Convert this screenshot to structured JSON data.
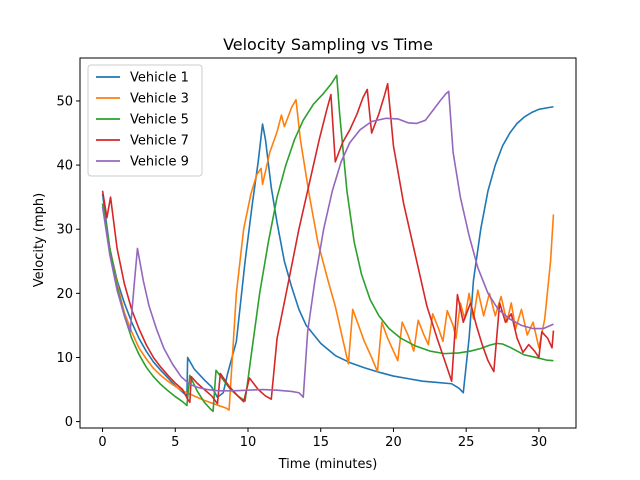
{
  "chart_data": {
    "type": "line",
    "title": "Velocity Sampling vs Time",
    "xlabel": "Time (minutes)",
    "ylabel": "Velocity (mph)",
    "xlim": [
      -1.55,
      32.55
    ],
    "ylim": [
      -1.0,
      56.7
    ],
    "xticks": [
      0,
      5,
      10,
      15,
      20,
      25,
      30
    ],
    "yticks": [
      0,
      10,
      20,
      30,
      40,
      50
    ],
    "grid": false,
    "legend": "top-left",
    "series": [
      {
        "name": "Vehicle 1",
        "color": "#1f77b4",
        "points": [
          [
            0,
            35.5
          ],
          [
            0.5,
            27
          ],
          [
            1,
            22
          ],
          [
            1.5,
            18.5
          ],
          [
            2,
            15.5
          ],
          [
            2.5,
            13
          ],
          [
            3,
            11
          ],
          [
            3.5,
            9.3
          ],
          [
            4,
            8
          ],
          [
            4.5,
            6.8
          ],
          [
            5,
            5.6
          ],
          [
            5.5,
            4.6
          ],
          [
            5.8,
            4.0
          ],
          [
            5.85,
            10.0
          ],
          [
            6.3,
            8.2
          ],
          [
            7,
            6.5
          ],
          [
            7.5,
            5.4
          ],
          [
            7.9,
            3.8
          ],
          [
            8.3,
            4.5
          ],
          [
            8.6,
            7.5
          ],
          [
            9.2,
            12.5
          ],
          [
            9.8,
            25
          ],
          [
            10.3,
            34
          ],
          [
            10.7,
            40.5
          ],
          [
            11.0,
            46.4
          ],
          [
            11.2,
            44
          ],
          [
            11.6,
            36.5
          ],
          [
            12,
            31
          ],
          [
            12.5,
            25
          ],
          [
            13,
            21
          ],
          [
            13.5,
            17.5
          ],
          [
            14,
            15
          ],
          [
            15,
            12.2
          ],
          [
            16,
            10.3
          ],
          [
            17,
            9.2
          ],
          [
            18,
            8.4
          ],
          [
            19,
            7.7
          ],
          [
            20,
            7.1
          ],
          [
            21,
            6.7
          ],
          [
            22,
            6.3
          ],
          [
            23,
            6.1
          ],
          [
            24,
            5.9
          ],
          [
            24.5,
            5.2
          ],
          [
            24.8,
            4.5
          ],
          [
            25.2,
            13
          ],
          [
            25.5,
            22
          ],
          [
            26,
            30
          ],
          [
            26.5,
            36
          ],
          [
            27,
            40
          ],
          [
            27.5,
            43
          ],
          [
            28,
            45
          ],
          [
            28.5,
            46.5
          ],
          [
            29,
            47.5
          ],
          [
            29.5,
            48.2
          ],
          [
            30,
            48.7
          ],
          [
            30.5,
            48.9
          ],
          [
            31,
            49.1
          ]
        ]
      },
      {
        "name": "Vehicle 3",
        "color": "#ff7f0e",
        "points": [
          [
            0,
            34
          ],
          [
            0.5,
            27
          ],
          [
            1,
            21.5
          ],
          [
            1.5,
            17
          ],
          [
            2,
            14
          ],
          [
            2.5,
            11.5
          ],
          [
            3,
            9.8
          ],
          [
            3.5,
            8.3
          ],
          [
            4,
            7.2
          ],
          [
            4.5,
            6.3
          ],
          [
            5,
            5.5
          ],
          [
            5.5,
            4.8
          ],
          [
            6,
            4.3
          ],
          [
            6.5,
            3.8
          ],
          [
            7,
            3.3
          ],
          [
            7.5,
            2.9
          ],
          [
            8,
            2.5
          ],
          [
            8.5,
            2.1
          ],
          [
            8.7,
            1.8
          ],
          [
            9.2,
            20
          ],
          [
            9.7,
            30
          ],
          [
            10.2,
            35.5
          ],
          [
            10.6,
            38.5
          ],
          [
            10.9,
            39.5
          ],
          [
            11.0,
            37
          ],
          [
            11.5,
            42
          ],
          [
            12,
            45.2
          ],
          [
            12.3,
            47.8
          ],
          [
            12.5,
            46
          ],
          [
            13,
            49
          ],
          [
            13.3,
            50.2
          ],
          [
            13.6,
            44
          ],
          [
            14.2,
            35.5
          ],
          [
            14.8,
            28
          ],
          [
            15.5,
            22
          ],
          [
            16,
            18
          ],
          [
            16.6,
            12
          ],
          [
            16.9,
            9
          ],
          [
            17.2,
            17.5
          ],
          [
            17.6,
            15
          ],
          [
            18,
            12.5
          ],
          [
            18.5,
            10
          ],
          [
            18.9,
            7.8
          ],
          [
            19.2,
            15.5
          ],
          [
            19.6,
            13
          ],
          [
            20,
            11
          ],
          [
            20.3,
            9.5
          ],
          [
            20.6,
            15.5
          ],
          [
            21,
            13.5
          ],
          [
            21.4,
            11
          ],
          [
            21.7,
            15.8
          ],
          [
            22.1,
            13.5
          ],
          [
            22.4,
            12
          ],
          [
            22.7,
            16.8
          ],
          [
            23.1,
            14.5
          ],
          [
            23.4,
            12.5
          ],
          [
            23.7,
            17.3
          ],
          [
            24.1,
            15
          ],
          [
            24.3,
            13
          ],
          [
            24.6,
            18.5
          ],
          [
            24.9,
            16
          ],
          [
            25.2,
            20
          ],
          [
            25.5,
            16
          ],
          [
            25.8,
            20.5
          ],
          [
            26.2,
            16.5
          ],
          [
            26.6,
            20
          ],
          [
            27,
            16.5
          ],
          [
            27.4,
            19.5
          ],
          [
            27.8,
            15.5
          ],
          [
            28.1,
            18.5
          ],
          [
            28.4,
            14.5
          ],
          [
            28.8,
            17.5
          ],
          [
            29.2,
            13.5
          ],
          [
            29.6,
            15.5
          ],
          [
            30.0,
            11.5
          ],
          [
            30.4,
            16
          ],
          [
            30.8,
            25
          ],
          [
            31,
            32.3
          ]
        ]
      },
      {
        "name": "Vehicle 5",
        "color": "#2ca02c",
        "points": [
          [
            0,
            34
          ],
          [
            0.5,
            27
          ],
          [
            1,
            21
          ],
          [
            1.5,
            16.5
          ],
          [
            2,
            13
          ],
          [
            2.5,
            10.5
          ],
          [
            3,
            8.5
          ],
          [
            3.5,
            7
          ],
          [
            4,
            5.8
          ],
          [
            4.5,
            4.8
          ],
          [
            5,
            3.9
          ],
          [
            5.5,
            3.1
          ],
          [
            5.8,
            2.5
          ],
          [
            6.0,
            7.2
          ],
          [
            6.5,
            4.8
          ],
          [
            7.0,
            3.0
          ],
          [
            7.4,
            2.0
          ],
          [
            7.6,
            1.6
          ],
          [
            7.8,
            8.0
          ],
          [
            8.3,
            6.5
          ],
          [
            8.8,
            5.0
          ],
          [
            9.3,
            4.0
          ],
          [
            9.8,
            3.2
          ],
          [
            10.2,
            10
          ],
          [
            10.8,
            20
          ],
          [
            11.4,
            28
          ],
          [
            12,
            35
          ],
          [
            12.6,
            40
          ],
          [
            13.2,
            44
          ],
          [
            13.8,
            47
          ],
          [
            14.5,
            49.5
          ],
          [
            15.2,
            51.2
          ],
          [
            15.7,
            52.6
          ],
          [
            16.1,
            54.0
          ],
          [
            16.3,
            48
          ],
          [
            16.8,
            36
          ],
          [
            17.3,
            28
          ],
          [
            17.8,
            23
          ],
          [
            18.4,
            19
          ],
          [
            19,
            16.5
          ],
          [
            19.7,
            14.5
          ],
          [
            20.5,
            13
          ],
          [
            21.5,
            11.8
          ],
          [
            22.5,
            11
          ],
          [
            23.5,
            10.6
          ],
          [
            24.5,
            10.7
          ],
          [
            25.3,
            11
          ],
          [
            26,
            11.4
          ],
          [
            26.6,
            11.9
          ],
          [
            27.1,
            12.2
          ],
          [
            27.5,
            12.1
          ],
          [
            28,
            11.6
          ],
          [
            28.5,
            11
          ],
          [
            29,
            10.4
          ],
          [
            29.8,
            10
          ],
          [
            30.5,
            9.6
          ],
          [
            31,
            9.5
          ]
        ]
      },
      {
        "name": "Vehicle 7",
        "color": "#d62728",
        "points": [
          [
            0,
            36
          ],
          [
            0.3,
            31.8
          ],
          [
            0.55,
            35
          ],
          [
            1,
            27
          ],
          [
            1.5,
            21.5
          ],
          [
            2,
            17.5
          ],
          [
            2.5,
            14.5
          ],
          [
            3,
            12
          ],
          [
            3.5,
            10
          ],
          [
            4,
            8.5
          ],
          [
            4.5,
            7.2
          ],
          [
            5,
            6
          ],
          [
            5.5,
            5
          ],
          [
            5.85,
            3.5
          ],
          [
            6.0,
            3.0
          ],
          [
            6.1,
            7
          ],
          [
            6.5,
            6
          ],
          [
            7,
            5
          ],
          [
            7.5,
            4
          ],
          [
            7.9,
            2.8
          ],
          [
            8.1,
            7.5
          ],
          [
            8.7,
            5.5
          ],
          [
            9.3,
            4
          ],
          [
            9.7,
            3.1
          ],
          [
            10.1,
            6.8
          ],
          [
            10.7,
            5
          ],
          [
            11.2,
            4
          ],
          [
            11.6,
            3.5
          ],
          [
            12,
            13
          ],
          [
            12.8,
            22
          ],
          [
            13.5,
            30
          ],
          [
            14.3,
            38
          ],
          [
            14.9,
            44
          ],
          [
            15.4,
            48.5
          ],
          [
            15.7,
            51
          ],
          [
            16.0,
            40.5
          ],
          [
            16.5,
            43.5
          ],
          [
            17,
            45.5
          ],
          [
            17.5,
            48
          ],
          [
            17.9,
            50.5
          ],
          [
            18.2,
            51.8
          ],
          [
            18.5,
            45
          ],
          [
            19,
            48
          ],
          [
            19.4,
            51
          ],
          [
            19.6,
            52.7
          ],
          [
            20,
            43
          ],
          [
            20.7,
            34
          ],
          [
            21.5,
            26
          ],
          [
            22.3,
            18
          ],
          [
            23,
            13
          ],
          [
            23.6,
            9
          ],
          [
            24.0,
            6.3
          ],
          [
            24.4,
            19.8
          ],
          [
            24.8,
            15.5
          ],
          [
            25.3,
            18.5
          ],
          [
            25.7,
            15
          ],
          [
            26.1,
            12
          ],
          [
            26.5,
            9.5
          ],
          [
            26.9,
            7.8
          ],
          [
            27.3,
            18.5
          ],
          [
            27.7,
            15.5
          ],
          [
            28.1,
            16.8
          ],
          [
            28.5,
            13
          ],
          [
            28.9,
            10.8
          ],
          [
            29.3,
            12
          ],
          [
            29.7,
            11
          ],
          [
            30,
            10
          ],
          [
            30.2,
            14
          ],
          [
            30.6,
            13
          ],
          [
            30.9,
            11.5
          ],
          [
            31,
            14.2
          ]
        ]
      },
      {
        "name": "Vehicle 9",
        "color": "#9467bd",
        "points": [
          [
            0,
            33.5
          ],
          [
            0.5,
            26
          ],
          [
            1,
            20.5
          ],
          [
            1.5,
            16.5
          ],
          [
            1.9,
            14
          ],
          [
            2.2,
            22
          ],
          [
            2.4,
            27
          ],
          [
            2.8,
            22
          ],
          [
            3.2,
            18
          ],
          [
            3.7,
            14.5
          ],
          [
            4.2,
            11.5
          ],
          [
            4.8,
            9
          ],
          [
            5.4,
            7
          ],
          [
            6,
            5.8
          ],
          [
            6.6,
            5.3
          ],
          [
            7.2,
            5
          ],
          [
            8,
            4.8
          ],
          [
            9,
            4.8
          ],
          [
            10,
            4.9
          ],
          [
            11,
            5.0
          ],
          [
            12,
            4.9
          ],
          [
            13,
            4.7
          ],
          [
            13.5,
            4.5
          ],
          [
            13.8,
            3.8
          ],
          [
            14.1,
            14
          ],
          [
            14.6,
            22
          ],
          [
            15.2,
            30
          ],
          [
            15.8,
            36
          ],
          [
            16.4,
            40.5
          ],
          [
            17,
            43.5
          ],
          [
            17.7,
            45.5
          ],
          [
            18.5,
            46.8
          ],
          [
            19.5,
            47.3
          ],
          [
            20.3,
            47.2
          ],
          [
            21,
            46.6
          ],
          [
            21.6,
            46.5
          ],
          [
            22.2,
            47
          ],
          [
            22.7,
            48.5
          ],
          [
            23.2,
            50
          ],
          [
            23.6,
            51.1
          ],
          [
            23.8,
            51.5
          ],
          [
            24.1,
            42
          ],
          [
            24.6,
            35
          ],
          [
            25.2,
            29
          ],
          [
            25.8,
            24
          ],
          [
            26.5,
            20
          ],
          [
            27.2,
            17.5
          ],
          [
            28,
            16
          ],
          [
            28.8,
            15
          ],
          [
            29.6,
            14.5
          ],
          [
            30.3,
            14.5
          ],
          [
            31,
            15.2
          ]
        ]
      }
    ]
  }
}
